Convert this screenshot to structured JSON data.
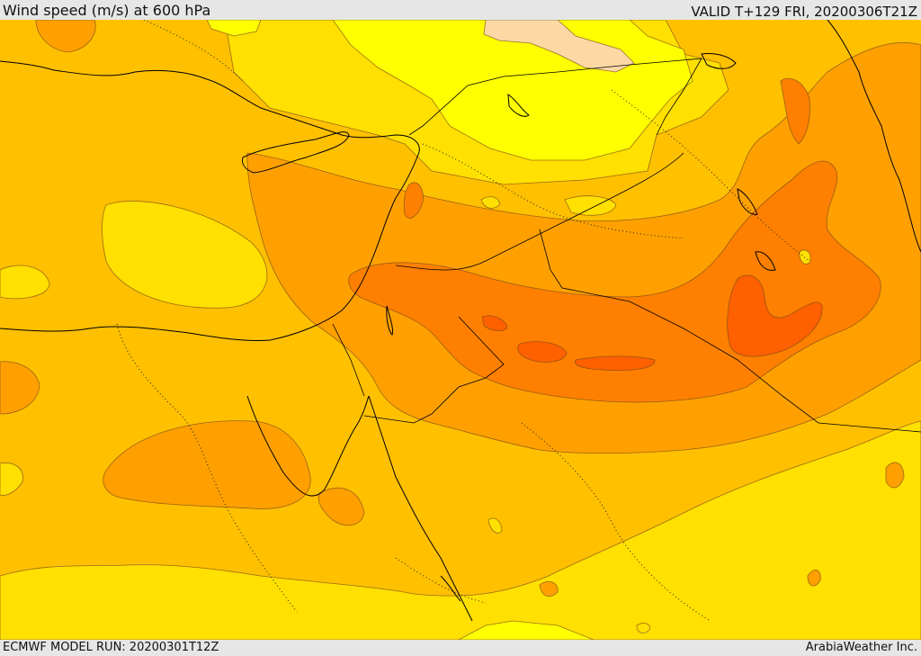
{
  "header": {
    "title": "Wind speed (m/s) at 600 hPa",
    "valid": "VALID T+129 FRI, 20200306T21Z"
  },
  "footer": {
    "model_run": "ECMWF MODEL RUN: 20200301T12Z",
    "credit": "ArabiaWeather Inc."
  },
  "palette": {
    "pale": "#fcd9a4",
    "yellow": "#ffff00",
    "yellow_orange": "#ffe000",
    "light_orange": "#ffc000",
    "orange": "#ffa000",
    "dark_orange": "#ff8000",
    "red_orange": "#ff6000"
  }
}
